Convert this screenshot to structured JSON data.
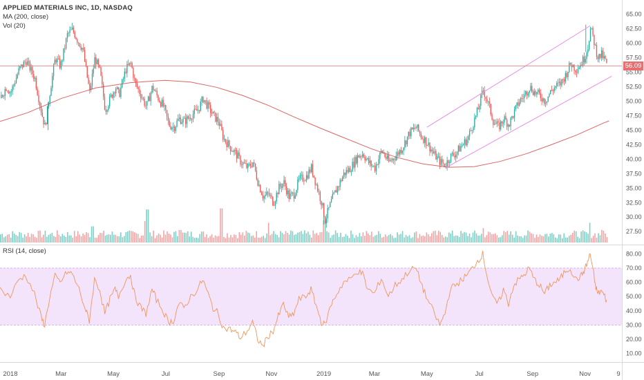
{
  "chart_data": [
    {
      "type": "candlestick",
      "title": "APPLIED MATERIALS INC, 1D, NASDAQ",
      "indicators": [
        "MA (200, close)",
        "Vol (20)"
      ],
      "last_price": "56.09",
      "ylim": [
        25.5,
        66.5
      ],
      "y_ticks": [
        "65.00",
        "62.50",
        "60.00",
        "57.50",
        "55.00",
        "52.50",
        "50.00",
        "47.50",
        "45.00",
        "42.50",
        "40.00",
        "37.50",
        "35.00",
        "32.50",
        "30.00",
        "27.50"
      ],
      "x_ticks": [
        {
          "label": "2018",
          "day": 0
        },
        {
          "label": "Mar",
          "day": 59
        },
        {
          "label": "May",
          "day": 120
        },
        {
          "label": "Jul",
          "day": 181
        },
        {
          "label": "Sep",
          "day": 243
        },
        {
          "label": "Nov",
          "day": 304
        },
        {
          "label": "2019",
          "day": 365
        },
        {
          "label": "Mar",
          "day": 424
        },
        {
          "label": "May",
          "day": 485
        },
        {
          "label": "Jul",
          "day": 546
        },
        {
          "label": "Sep",
          "day": 608
        },
        {
          "label": "Nov",
          "day": 669
        },
        {
          "label": "9",
          "day": 708
        }
      ],
      "x_range_days": [
        -12,
        712
      ],
      "close_path": [
        [
          -12,
          50.5
        ],
        [
          -5,
          52.5
        ],
        [
          0,
          51.5
        ],
        [
          10,
          55.5
        ],
        [
          18,
          57.0
        ],
        [
          28,
          54.0
        ],
        [
          36,
          48.0
        ],
        [
          40,
          45.5
        ],
        [
          46,
          52.0
        ],
        [
          52,
          57.5
        ],
        [
          58,
          56.0
        ],
        [
          66,
          61.5
        ],
        [
          72,
          62.3
        ],
        [
          78,
          60.5
        ],
        [
          84,
          59.0
        ],
        [
          88,
          55.0
        ],
        [
          92,
          51.5
        ],
        [
          98,
          57.5
        ],
        [
          104,
          55.0
        ],
        [
          110,
          48.5
        ],
        [
          116,
          50.5
        ],
        [
          122,
          52.5
        ],
        [
          126,
          51.0
        ],
        [
          134,
          55.5
        ],
        [
          140,
          56.5
        ],
        [
          145,
          53.0
        ],
        [
          152,
          51.0
        ],
        [
          158,
          49.0
        ],
        [
          165,
          52.5
        ],
        [
          170,
          51.0
        ],
        [
          178,
          49.0
        ],
        [
          184,
          46.0
        ],
        [
          190,
          45.5
        ],
        [
          196,
          47.0
        ],
        [
          202,
          46.5
        ],
        [
          210,
          47.5
        ],
        [
          218,
          48.5
        ],
        [
          224,
          50.5
        ],
        [
          230,
          49.0
        ],
        [
          236,
          47.5
        ],
        [
          242,
          46.5
        ],
        [
          248,
          43.5
        ],
        [
          256,
          42.0
        ],
        [
          262,
          41.0
        ],
        [
          268,
          39.5
        ],
        [
          276,
          38.5
        ],
        [
          282,
          39.5
        ],
        [
          288,
          36.0
        ],
        [
          294,
          33.5
        ],
        [
          300,
          34.0
        ],
        [
          306,
          32.5
        ],
        [
          312,
          35.0
        ],
        [
          318,
          36.0
        ],
        [
          324,
          33.5
        ],
        [
          330,
          34.0
        ],
        [
          336,
          36.5
        ],
        [
          344,
          37.0
        ],
        [
          350,
          38.5
        ],
        [
          356,
          35.5
        ],
        [
          362,
          32.5
        ],
        [
          366,
          29.5
        ],
        [
          374,
          33.0
        ],
        [
          380,
          35.0
        ],
        [
          388,
          37.5
        ],
        [
          396,
          38.5
        ],
        [
          404,
          40.5
        ],
        [
          410,
          41.0
        ],
        [
          416,
          39.5
        ],
        [
          424,
          38.5
        ],
        [
          432,
          41.5
        ],
        [
          440,
          39.5
        ],
        [
          448,
          40.5
        ],
        [
          456,
          42.0
        ],
        [
          464,
          44.5
        ],
        [
          472,
          45.5
        ],
        [
          478,
          44.0
        ],
        [
          484,
          43.0
        ],
        [
          492,
          41.0
        ],
        [
          500,
          39.5
        ],
        [
          506,
          39.0
        ],
        [
          512,
          40.5
        ],
        [
          518,
          41.0
        ],
        [
          526,
          42.5
        ],
        [
          532,
          43.5
        ],
        [
          538,
          46.0
        ],
        [
          544,
          48.5
        ],
        [
          550,
          52.0
        ],
        [
          556,
          49.5
        ],
        [
          562,
          46.5
        ],
        [
          568,
          45.5
        ],
        [
          574,
          47.0
        ],
        [
          580,
          46.0
        ],
        [
          586,
          48.0
        ],
        [
          592,
          50.0
        ],
        [
          598,
          51.0
        ],
        [
          604,
          52.5
        ],
        [
          610,
          51.5
        ],
        [
          616,
          51.0
        ],
        [
          622,
          50.0
        ],
        [
          628,
          51.5
        ],
        [
          634,
          52.5
        ],
        [
          640,
          53.0
        ],
        [
          646,
          54.5
        ],
        [
          652,
          56.5
        ],
        [
          658,
          55.5
        ],
        [
          664,
          56.5
        ],
        [
          668,
          57.5
        ],
        [
          672,
          59.5
        ],
        [
          675,
          62.5
        ],
        [
          678,
          61.0
        ],
        [
          681,
          59.0
        ],
        [
          684,
          57.5
        ],
        [
          688,
          58.0
        ],
        [
          692,
          57.0
        ],
        [
          695,
          56.09
        ]
      ],
      "spikes": [
        [
          670,
          63.2
        ],
        [
          365,
          28.7
        ],
        [
          44,
          45.0
        ]
      ],
      "ma200": [
        [
          -12,
          46.5
        ],
        [
          20,
          48.0
        ],
        [
          60,
          50.5
        ],
        [
          100,
          52.3
        ],
        [
          140,
          53.2
        ],
        [
          180,
          53.6
        ],
        [
          210,
          53.3
        ],
        [
          240,
          52.4
        ],
        [
          270,
          51.0
        ],
        [
          300,
          49.3
        ],
        [
          330,
          47.3
        ],
        [
          360,
          45.4
        ],
        [
          390,
          43.6
        ],
        [
          420,
          41.8
        ],
        [
          450,
          40.3
        ],
        [
          480,
          39.2
        ],
        [
          510,
          38.6
        ],
        [
          540,
          38.7
        ],
        [
          570,
          39.6
        ],
        [
          600,
          40.9
        ],
        [
          630,
          42.5
        ],
        [
          660,
          44.2
        ],
        [
          690,
          46.2
        ],
        [
          697,
          46.6
        ]
      ],
      "channel_upper": [
        [
          485,
          45.5
        ],
        [
          675,
          63.0
        ]
      ],
      "channel_lower": [
        [
          508,
          38.6
        ],
        [
          700,
          54.3
        ]
      ],
      "horizontal_line": 56.09,
      "volume_max_note": "relative bar heights",
      "volume_spikes": [
        [
          95,
          0.45
        ],
        [
          156,
          0.6
        ],
        [
          159,
          0.92
        ],
        [
          197,
          0.35
        ],
        [
          245,
          0.95
        ],
        [
          300,
          0.55
        ],
        [
          365,
          0.62
        ],
        [
          550,
          0.4
        ],
        [
          674,
          0.55
        ],
        [
          688,
          0.35
        ]
      ]
    },
    {
      "type": "line",
      "title": "RSI (14, close)",
      "ylim": [
        5,
        85
      ],
      "y_ticks": [
        "80.00",
        "70.00",
        "60.00",
        "50.00",
        "40.00",
        "30.00",
        "20.00",
        "10.00"
      ],
      "band": [
        30,
        70
      ],
      "rsi_path": [
        [
          -12,
          55
        ],
        [
          0,
          50
        ],
        [
          10,
          62
        ],
        [
          18,
          65
        ],
        [
          28,
          52
        ],
        [
          36,
          35
        ],
        [
          40,
          30
        ],
        [
          46,
          50
        ],
        [
          52,
          64
        ],
        [
          58,
          60
        ],
        [
          66,
          67
        ],
        [
          72,
          66
        ],
        [
          80,
          55
        ],
        [
          88,
          40
        ],
        [
          92,
          33
        ],
        [
          98,
          62
        ],
        [
          104,
          55
        ],
        [
          110,
          38
        ],
        [
          116,
          48
        ],
        [
          122,
          55
        ],
        [
          126,
          50
        ],
        [
          134,
          62
        ],
        [
          140,
          65
        ],
        [
          145,
          50
        ],
        [
          152,
          42
        ],
        [
          158,
          38
        ],
        [
          165,
          55
        ],
        [
          170,
          48
        ],
        [
          178,
          40
        ],
        [
          184,
          32
        ],
        [
          190,
          33
        ],
        [
          196,
          45
        ],
        [
          202,
          42
        ],
        [
          210,
          50
        ],
        [
          218,
          55
        ],
        [
          224,
          62
        ],
        [
          230,
          52
        ],
        [
          236,
          42
        ],
        [
          242,
          38
        ],
        [
          248,
          28
        ],
        [
          256,
          27
        ],
        [
          262,
          25
        ],
        [
          268,
          21
        ],
        [
          276,
          26
        ],
        [
          282,
          32
        ],
        [
          288,
          20
        ],
        [
          294,
          15
        ],
        [
          300,
          22
        ],
        [
          306,
          26
        ],
        [
          312,
          36
        ],
        [
          318,
          45
        ],
        [
          324,
          35
        ],
        [
          330,
          38
        ],
        [
          336,
          48
        ],
        [
          344,
          50
        ],
        [
          350,
          55
        ],
        [
          356,
          44
        ],
        [
          362,
          32
        ],
        [
          366,
          30
        ],
        [
          374,
          45
        ],
        [
          380,
          52
        ],
        [
          388,
          60
        ],
        [
          396,
          62
        ],
        [
          404,
          68
        ],
        [
          410,
          66
        ],
        [
          416,
          55
        ],
        [
          424,
          52
        ],
        [
          432,
          63
        ],
        [
          440,
          50
        ],
        [
          448,
          58
        ],
        [
          456,
          62
        ],
        [
          464,
          68
        ],
        [
          472,
          70
        ],
        [
          478,
          60
        ],
        [
          484,
          50
        ],
        [
          492,
          40
        ],
        [
          500,
          30
        ],
        [
          506,
          38
        ],
        [
          512,
          55
        ],
        [
          518,
          58
        ],
        [
          526,
          62
        ],
        [
          532,
          65
        ],
        [
          538,
          70
        ],
        [
          544,
          75
        ],
        [
          550,
          80
        ],
        [
          556,
          62
        ],
        [
          562,
          48
        ],
        [
          568,
          45
        ],
        [
          574,
          55
        ],
        [
          580,
          45
        ],
        [
          586,
          58
        ],
        [
          592,
          62
        ],
        [
          598,
          65
        ],
        [
          604,
          70
        ],
        [
          610,
          62
        ],
        [
          616,
          58
        ],
        [
          622,
          52
        ],
        [
          628,
          58
        ],
        [
          634,
          60
        ],
        [
          640,
          62
        ],
        [
          646,
          68
        ],
        [
          652,
          70
        ],
        [
          658,
          62
        ],
        [
          664,
          64
        ],
        [
          668,
          68
        ],
        [
          672,
          74
        ],
        [
          675,
          80
        ],
        [
          678,
          70
        ],
        [
          681,
          58
        ],
        [
          684,
          52
        ],
        [
          688,
          54
        ],
        [
          692,
          50
        ],
        [
          695,
          46
        ]
      ]
    }
  ]
}
